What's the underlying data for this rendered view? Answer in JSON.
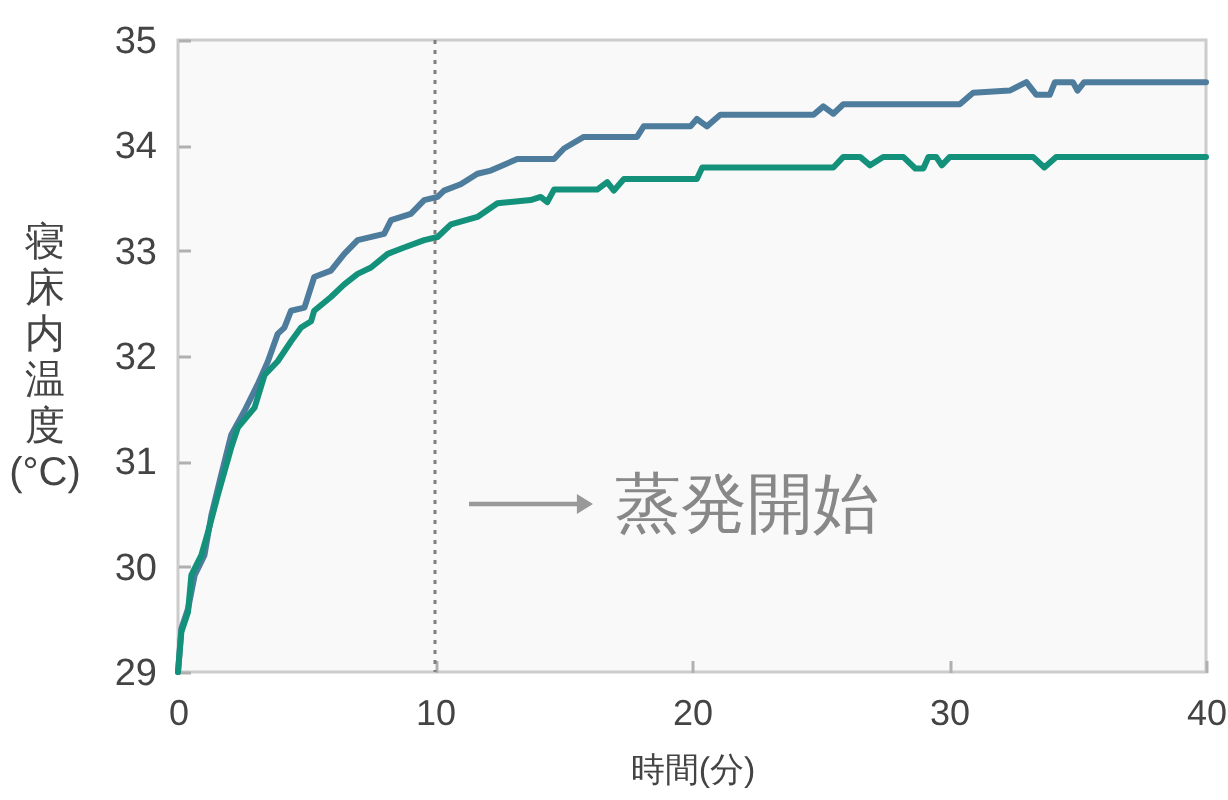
{
  "chart_data": {
    "type": "line",
    "xlabel": "時間(分)",
    "ylabel": "寝床内温度(°C)",
    "xlim": [
      0,
      40
    ],
    "ylim": [
      29,
      35
    ],
    "xticks": [
      0,
      10,
      20,
      30,
      40
    ],
    "yticks": [
      29,
      30,
      31,
      32,
      33,
      34,
      35
    ],
    "ref_lines": [
      {
        "axis": "x",
        "value": 10,
        "label": "蒸発開始",
        "line_style": "dotted",
        "color": "#7f7f7f"
      }
    ],
    "series": [
      {
        "color": "#4d7c9c",
        "x": [
          0,
          0.13,
          0.39,
          0.65,
          1.03,
          1.3,
          1.68,
          2.07,
          2.59,
          3.1,
          3.5,
          3.88,
          4.14,
          4.4,
          4.92,
          5.3,
          5.95,
          6.47,
          6.99,
          8.02,
          8.29,
          9.06,
          9.58,
          10.1,
          10.35,
          11.0,
          11.65,
          12.17,
          13.2,
          14.63,
          15.02,
          15.79,
          17.86,
          18.12,
          19.94,
          20.19,
          20.58,
          21.1,
          24.73,
          25.11,
          25.5,
          25.89,
          30.42,
          30.94,
          32.36,
          33.01,
          33.4,
          33.92,
          34.12,
          34.82,
          35.0,
          35.26,
          40
        ],
        "values": [
          29.0,
          29.41,
          29.6,
          29.92,
          30.11,
          30.49,
          30.87,
          31.25,
          31.48,
          31.73,
          31.95,
          32.21,
          32.27,
          32.43,
          32.46,
          32.75,
          32.81,
          32.97,
          33.1,
          33.16,
          33.29,
          33.35,
          33.48,
          33.51,
          33.57,
          33.63,
          33.73,
          33.76,
          33.87,
          33.87,
          33.97,
          34.08,
          34.08,
          34.18,
          34.18,
          34.25,
          34.18,
          34.29,
          34.29,
          34.37,
          34.3,
          34.39,
          34.39,
          34.5,
          34.52,
          34.6,
          34.48,
          34.48,
          34.6,
          34.6,
          34.52,
          34.6,
          34.6
        ]
      },
      {
        "color": "#14917a",
        "x": [
          0,
          0.13,
          0.39,
          0.52,
          0.91,
          1.17,
          1.55,
          2.07,
          2.33,
          2.98,
          3.37,
          3.88,
          4.4,
          4.79,
          5.18,
          5.3,
          5.95,
          6.47,
          6.99,
          7.51,
          8.16,
          8.8,
          9.58,
          10.1,
          10.62,
          11.65,
          12.43,
          13.72,
          14.11,
          14.37,
          14.63,
          16.31,
          16.7,
          16.96,
          17.35,
          20.19,
          20.4,
          25.5,
          25.89,
          26.54,
          26.93,
          27.44,
          28.22,
          28.69,
          29.0,
          29.2,
          29.5,
          29.72,
          30.03,
          33.27,
          33.71,
          34.17,
          40
        ],
        "values": [
          29.0,
          29.38,
          29.57,
          29.92,
          30.11,
          30.33,
          30.68,
          31.13,
          31.32,
          31.51,
          31.82,
          31.95,
          32.14,
          32.27,
          32.33,
          32.43,
          32.56,
          32.68,
          32.78,
          32.84,
          32.97,
          33.03,
          33.1,
          33.13,
          33.25,
          33.32,
          33.45,
          33.48,
          33.51,
          33.46,
          33.58,
          33.58,
          33.65,
          33.57,
          33.68,
          33.68,
          33.79,
          33.79,
          33.89,
          33.89,
          33.81,
          33.89,
          33.89,
          33.78,
          33.78,
          33.89,
          33.89,
          33.81,
          33.89,
          33.89,
          33.79,
          33.89,
          33.89
        ]
      }
    ]
  }
}
